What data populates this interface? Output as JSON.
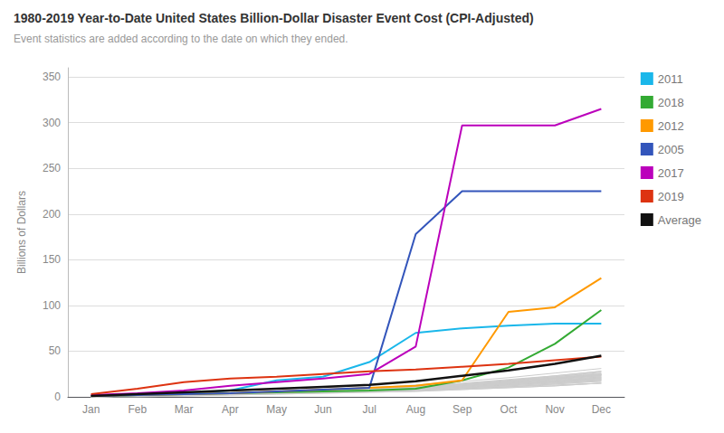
{
  "chart_data": {
    "type": "line",
    "title": "1980-2019 Year-to-Date United States Billion-Dollar Disaster Event Cost (CPI-Adjusted)",
    "subtitle": "Event statistics are added according to the date on which they ended.",
    "ylabel": "Billions of Dollars",
    "categories": [
      "Jan",
      "Feb",
      "Mar",
      "Apr",
      "May",
      "Jun",
      "Jul",
      "Aug",
      "Sep",
      "Oct",
      "Nov",
      "Dec"
    ],
    "series": [
      {
        "color": "#cccccc",
        "values": [
          0,
          1,
          2,
          3,
          4,
          5,
          6,
          7,
          9,
          11,
          13,
          15
        ]
      },
      {
        "color": "#cccccc",
        "values": [
          1,
          2,
          3,
          4,
          5,
          6,
          7,
          9,
          11,
          13,
          16,
          19
        ]
      },
      {
        "color": "#cccccc",
        "values": [
          0,
          1,
          2,
          3,
          4,
          5,
          6,
          7,
          9,
          11,
          14,
          17
        ]
      },
      {
        "color": "#cccccc",
        "values": [
          1,
          1,
          2,
          3,
          4,
          6,
          7,
          9,
          11,
          14,
          17,
          20
        ]
      },
      {
        "color": "#cccccc",
        "values": [
          0,
          1,
          2,
          3,
          4,
          5,
          7,
          9,
          11,
          14,
          17,
          21
        ]
      },
      {
        "color": "#cccccc",
        "values": [
          1,
          2,
          3,
          4,
          5,
          6,
          8,
          10,
          13,
          16,
          20,
          24
        ]
      },
      {
        "color": "#cccccc",
        "values": [
          0,
          1,
          2,
          3,
          5,
          6,
          8,
          10,
          13,
          17,
          21,
          25
        ]
      },
      {
        "color": "#cccccc",
        "values": [
          1,
          2,
          3,
          4,
          5,
          7,
          9,
          11,
          14,
          18,
          22,
          27
        ]
      },
      {
        "color": "#cccccc",
        "values": [
          0,
          1,
          2,
          3,
          4,
          5,
          7,
          9,
          12,
          15,
          19,
          23
        ]
      },
      {
        "color": "#cccccc",
        "values": [
          1,
          2,
          3,
          4,
          5,
          7,
          9,
          11,
          14,
          18,
          22,
          26
        ]
      },
      {
        "color": "#cccccc",
        "values": [
          0,
          1,
          2,
          3,
          4,
          6,
          8,
          10,
          13,
          16,
          20,
          24
        ]
      },
      {
        "color": "#cccccc",
        "values": [
          1,
          2,
          3,
          4,
          6,
          8,
          10,
          13,
          17,
          21,
          26,
          31
        ]
      },
      {
        "color": "#cccccc",
        "values": [
          0,
          1,
          2,
          3,
          4,
          5,
          7,
          9,
          12,
          15,
          18,
          22
        ]
      },
      {
        "color": "#cccccc",
        "values": [
          1,
          1,
          2,
          3,
          4,
          6,
          8,
          10,
          13,
          16,
          20,
          24
        ]
      },
      {
        "color": "#cccccc",
        "values": [
          0,
          1,
          2,
          3,
          4,
          5,
          6,
          8,
          10,
          13,
          16,
          19
        ]
      },
      {
        "color": "#cccccc",
        "values": [
          1,
          2,
          3,
          4,
          5,
          6,
          8,
          10,
          13,
          16,
          20,
          24
        ]
      },
      {
        "color": "#cccccc",
        "values": [
          0,
          1,
          2,
          3,
          5,
          6,
          8,
          10,
          13,
          17,
          21,
          25
        ]
      },
      {
        "color": "#cccccc",
        "values": [
          1,
          1,
          2,
          3,
          4,
          5,
          7,
          9,
          12,
          15,
          18,
          22
        ]
      },
      {
        "color": "#cccccc",
        "values": [
          0,
          1,
          2,
          3,
          4,
          5,
          6,
          8,
          10,
          13,
          16,
          19
        ]
      },
      {
        "color": "#cccccc",
        "values": [
          1,
          2,
          3,
          4,
          5,
          6,
          8,
          10,
          13,
          17,
          21,
          25
        ]
      },
      {
        "color": "#cccccc",
        "values": [
          0,
          1,
          2,
          3,
          4,
          5,
          7,
          9,
          12,
          15,
          19,
          23
        ]
      },
      {
        "color": "#cccccc",
        "values": [
          1,
          2,
          3,
          4,
          5,
          7,
          9,
          11,
          14,
          18,
          23,
          28
        ]
      },
      {
        "color": "#cccccc",
        "values": [
          0,
          1,
          2,
          3,
          4,
          5,
          6,
          8,
          10,
          12,
          15,
          18
        ]
      },
      {
        "color": "#cccccc",
        "values": [
          1,
          1,
          2,
          3,
          4,
          5,
          7,
          9,
          11,
          14,
          17,
          21
        ]
      },
      {
        "color": "#cccccc",
        "values": [
          0,
          1,
          2,
          3,
          4,
          6,
          8,
          10,
          13,
          16,
          20,
          24
        ]
      },
      {
        "color": "#cccccc",
        "values": [
          1,
          2,
          3,
          4,
          5,
          6,
          7,
          9,
          11,
          14,
          17,
          20
        ]
      },
      {
        "color": "#cccccc",
        "values": [
          0,
          1,
          2,
          3,
          4,
          5,
          6,
          8,
          10,
          12,
          15,
          18
        ]
      },
      {
        "color": "#cccccc",
        "values": [
          1,
          1,
          2,
          3,
          4,
          5,
          6,
          7,
          9,
          11,
          14,
          17
        ]
      },
      {
        "color": "#cccccc",
        "values": [
          0,
          0,
          1,
          2,
          3,
          4,
          5,
          6,
          8,
          10,
          12,
          15
        ]
      },
      {
        "color": "#cccccc",
        "values": [
          1,
          2,
          3,
          4,
          5,
          6,
          7,
          9,
          11,
          14,
          17,
          21
        ]
      },
      {
        "color": "#cccccc",
        "values": [
          0,
          0,
          1,
          2,
          3,
          4,
          5,
          6,
          8,
          10,
          12,
          15
        ]
      },
      {
        "color": "#cccccc",
        "values": [
          1,
          2,
          3,
          4,
          5,
          7,
          9,
          12,
          15,
          19,
          23,
          28
        ]
      },
      {
        "name": "2011",
        "color": "#1ab7ea",
        "values": [
          1,
          2,
          4,
          7,
          18,
          22,
          38,
          70,
          75,
          78,
          80,
          80
        ]
      },
      {
        "name": "2018",
        "color": "#33aa33",
        "values": [
          1,
          2,
          3,
          4,
          5,
          6,
          7,
          9,
          18,
          32,
          58,
          95
        ]
      },
      {
        "name": "2012",
        "color": "#ff9900",
        "values": [
          1,
          2,
          3,
          4,
          6,
          8,
          10,
          12,
          18,
          93,
          98,
          130
        ]
      },
      {
        "name": "2005",
        "color": "#3355bb",
        "values": [
          1,
          2,
          3,
          4,
          6,
          8,
          10,
          178,
          225,
          225,
          225,
          225
        ]
      },
      {
        "name": "2017",
        "color": "#bb00bb",
        "values": [
          2,
          4,
          7,
          12,
          16,
          20,
          25,
          55,
          297,
          297,
          297,
          315
        ]
      },
      {
        "name": "2019",
        "color": "#dd3311",
        "values": [
          3,
          9,
          16,
          20,
          22,
          25,
          28,
          30,
          33,
          36,
          40,
          44
        ]
      },
      {
        "name": "Average",
        "color": "#111111",
        "values": [
          1,
          3,
          5,
          7,
          9,
          11,
          13,
          17,
          23,
          29,
          36,
          45
        ]
      }
    ],
    "ylim": [
      0,
      360
    ],
    "yticks": [
      0,
      50,
      100,
      150,
      200,
      250,
      300,
      350
    ],
    "grid": true,
    "legend": "right"
  }
}
